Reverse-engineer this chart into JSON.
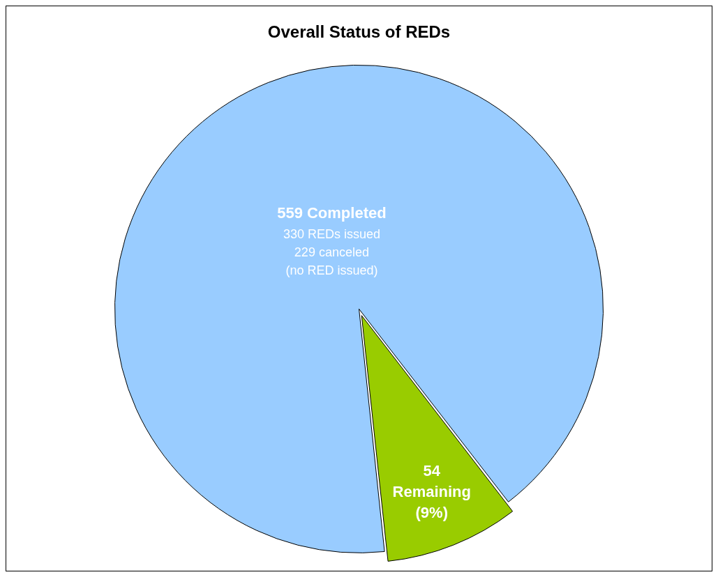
{
  "chart_data": {
    "type": "pie",
    "title": "Overall Status of REDs",
    "categories": [
      null,
      null
    ],
    "values": [
      559,
      54
    ],
    "colors": [
      "#99ccff",
      "#99cc00"
    ],
    "value_labels": [
      "559 Completed",
      "54\nRemaining\n(9%)"
    ],
    "annotations": [
      "330 REDs issued",
      "229 canceled",
      "(no RED issued)"
    ],
    "legend": false
  }
}
